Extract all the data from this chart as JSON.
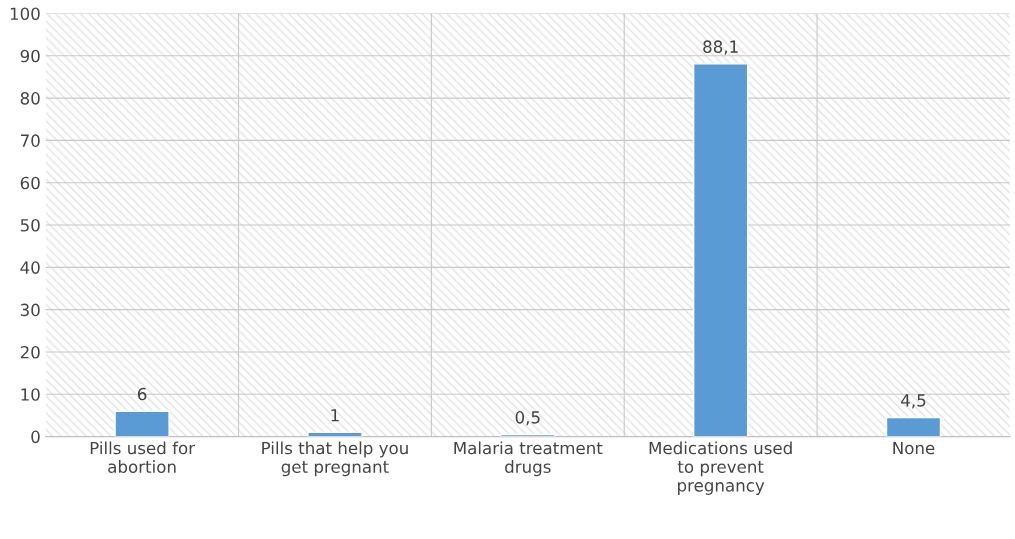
{
  "chart_data": {
    "type": "bar",
    "categories": [
      "Pills used for\nabortion",
      "Pills that help you\nget pregnant",
      "Malaria treatment\ndrugs",
      "Medications used\nto prevent\npregnancy",
      "None"
    ],
    "values": [
      6,
      1,
      0.5,
      88.1,
      4.5
    ],
    "value_labels": [
      "6",
      "1",
      "0,5",
      "88,1",
      "4,5"
    ],
    "color": "#5b9bd5",
    "ylim": [
      0,
      100
    ],
    "yticks": [
      0,
      10,
      20,
      30,
      40,
      50,
      60,
      70,
      80,
      90,
      100
    ],
    "grid": true,
    "legend": false
  }
}
